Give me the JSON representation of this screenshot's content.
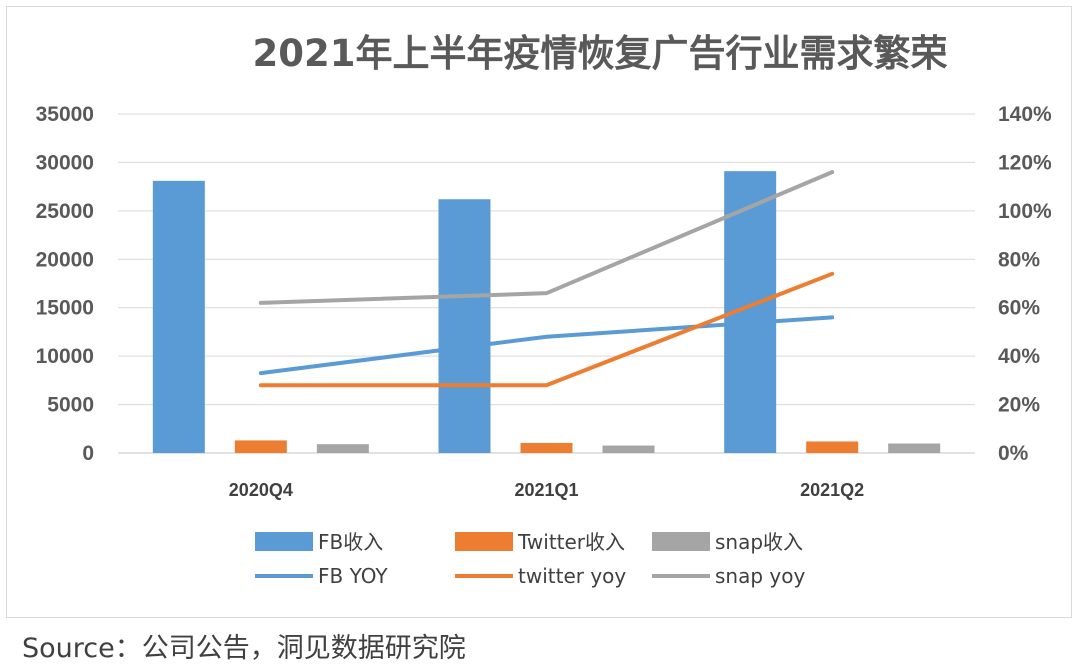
{
  "source": "Source：公司公告，洞见数据研究院",
  "colors": {
    "fb": "#5B9BD5",
    "twitter": "#ED7D31",
    "snap": "#A5A5A5",
    "grid": "#d9d9d9"
  },
  "chart_data": {
    "type": "bar",
    "title": "2021年上半年疫情恢复广告行业需求繁荣",
    "categories": [
      "2020Q4",
      "2021Q1",
      "2021Q2"
    ],
    "y_left": {
      "min": 0,
      "max": 35000,
      "step": 5000,
      "ticks": [
        "0",
        "5000",
        "10000",
        "15000",
        "20000",
        "25000",
        "30000",
        "35000"
      ]
    },
    "y_right": {
      "min": 0,
      "max": 1.4,
      "step": 0.2,
      "ticks": [
        "0%",
        "20%",
        "40%",
        "60%",
        "80%",
        "100%",
        "120%",
        "140%"
      ]
    },
    "grid": true,
    "legend_position": "bottom",
    "bar_series": [
      {
        "name": "FB收入",
        "values": [
          28100,
          26200,
          29100
        ],
        "color": "#5B9BD5"
      },
      {
        "name": "Twitter收入",
        "values": [
          1300,
          1040,
          1190
        ],
        "color": "#ED7D31"
      },
      {
        "name": "snap收入",
        "values": [
          910,
          770,
          980
        ],
        "color": "#A5A5A5"
      }
    ],
    "line_series": [
      {
        "name": "FB YOY",
        "values": [
          0.33,
          0.48,
          0.56
        ],
        "color": "#5B9BD5"
      },
      {
        "name": "twitter yoy",
        "values": [
          0.28,
          0.28,
          0.74
        ],
        "color": "#ED7D31"
      },
      {
        "name": "snap yoy",
        "values": [
          0.62,
          0.66,
          1.16
        ],
        "color": "#A5A5A5"
      }
    ]
  }
}
